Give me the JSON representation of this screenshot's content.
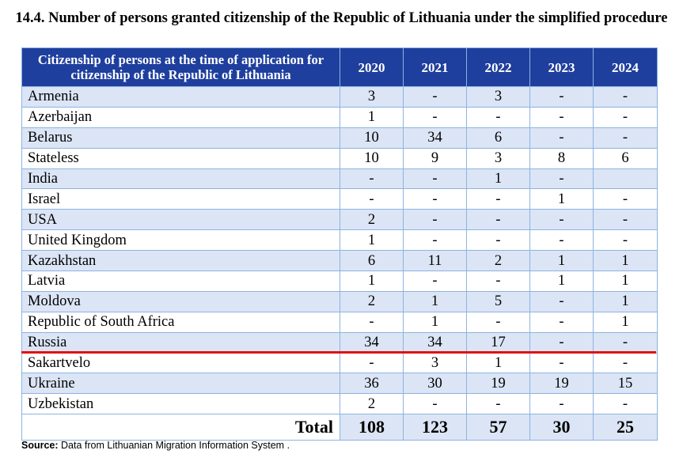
{
  "title": "14.4. Number of persons granted citizenship of the Republic of Lithuania under the simplified procedure",
  "table": {
    "header_country": "Citizenship of persons at the time of application for citizenship of the Republic of Lithuania",
    "years": [
      "2020",
      "2021",
      "2022",
      "2023",
      "2024"
    ],
    "rows": [
      {
        "country": "Armenia",
        "values": [
          "3",
          "-",
          "3",
          "-",
          "-"
        ]
      },
      {
        "country": "Azerbaijan",
        "values": [
          "1",
          "-",
          "-",
          "-",
          "-"
        ]
      },
      {
        "country": "Belarus",
        "values": [
          "10",
          "34",
          "6",
          "-",
          "-"
        ]
      },
      {
        "country": "Stateless",
        "values": [
          "10",
          "9",
          "3",
          "8",
          "6"
        ]
      },
      {
        "country": "India",
        "values": [
          "-",
          "-",
          "1",
          "-",
          ""
        ]
      },
      {
        "country": "Israel",
        "values": [
          "-",
          "-",
          "-",
          "1",
          "-"
        ]
      },
      {
        "country": "USA",
        "values": [
          "2",
          "-",
          "-",
          "-",
          "-"
        ]
      },
      {
        "country": "United Kingdom",
        "values": [
          "1",
          "-",
          "-",
          "-",
          "-"
        ]
      },
      {
        "country": "Kazakhstan",
        "values": [
          "6",
          "11",
          "2",
          "1",
          "1"
        ]
      },
      {
        "country": "Latvia",
        "values": [
          "1",
          "-",
          "-",
          "1",
          "1"
        ]
      },
      {
        "country": "Moldova",
        "values": [
          "2",
          "1",
          "5",
          "-",
          "1"
        ]
      },
      {
        "country": "Republic of South Africa",
        "values": [
          "-",
          "1",
          "-",
          "-",
          "1"
        ]
      },
      {
        "country": "Russia",
        "values": [
          "34",
          "34",
          "17",
          "-",
          "-"
        ]
      },
      {
        "country": "Sakartvelo",
        "values": [
          "-",
          "3",
          "1",
          "-",
          "-"
        ]
      },
      {
        "country": "Ukraine",
        "values": [
          "36",
          "30",
          "19",
          "19",
          "15"
        ]
      },
      {
        "country": "Uzbekistan",
        "values": [
          "2",
          "-",
          "-",
          "-",
          "-"
        ]
      }
    ],
    "total_label": "Total",
    "totals": [
      "108",
      "123",
      "57",
      "30",
      "25"
    ]
  },
  "source": {
    "label": "Source:",
    "text": " Data from Lithuanian Migration Information System ."
  },
  "colors": {
    "header_bg": "#1f3f9e",
    "row_alt_bg": "#dbe5f5",
    "border": "#8db3e2",
    "highlight_line": "#e11010"
  }
}
